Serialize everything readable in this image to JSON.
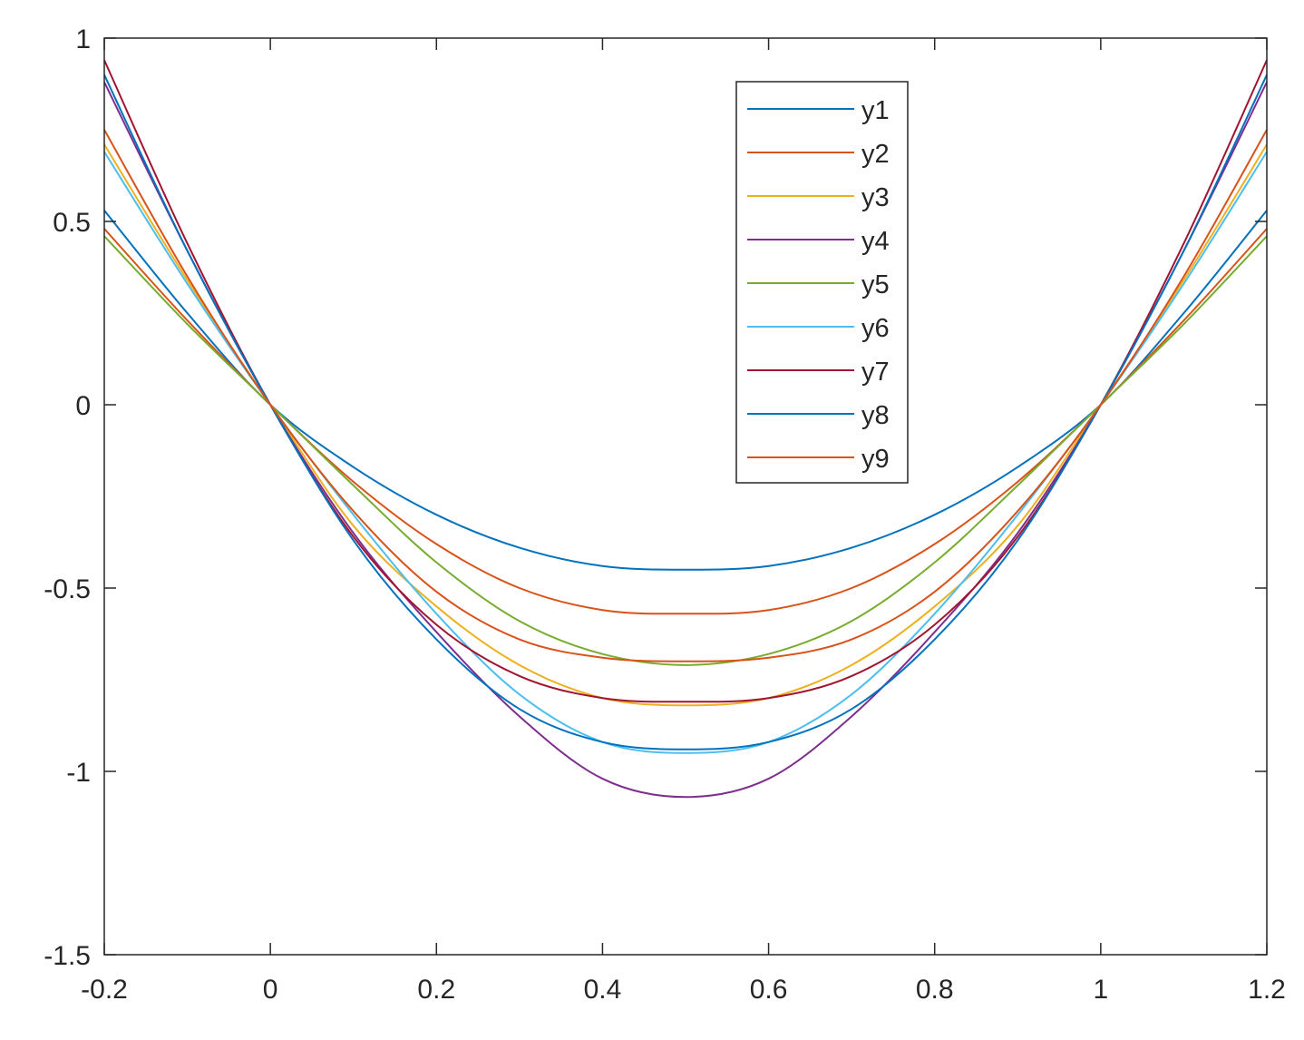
{
  "chart_data": {
    "type": "line",
    "title": "",
    "xlabel": "",
    "ylabel": "",
    "xlim": [
      -0.2,
      1.2
    ],
    "ylim": [
      -1.5,
      1
    ],
    "xticks": [
      -0.2,
      0,
      0.2,
      0.4,
      0.6,
      0.8,
      1,
      1.2
    ],
    "xtick_labels": [
      "-0.2",
      "0",
      "0.2",
      "0.4",
      "0.6",
      "0.8",
      "1",
      "1.2"
    ],
    "yticks": [
      -1.5,
      -1,
      -0.5,
      0,
      0.5,
      1
    ],
    "ytick_labels": [
      "-1.5",
      "-1",
      "-0.5",
      "0",
      "0.5",
      "1"
    ],
    "grid": false,
    "legend_position": "top-right",
    "x": [
      -0.2,
      -0.1,
      0,
      0.1,
      0.2,
      0.3,
      0.4,
      0.5,
      0.6,
      0.7,
      0.8,
      0.9,
      1,
      1.1,
      1.2
    ],
    "series": [
      {
        "name": "y1",
        "color": "#0072BD",
        "values": [
          0.53,
          0.25,
          0,
          -0.17,
          -0.3,
          -0.39,
          -0.44,
          -0.45,
          -0.44,
          -0.39,
          -0.3,
          -0.17,
          0,
          0.25,
          0.53
        ]
      },
      {
        "name": "y2",
        "color": "#D95319",
        "values": [
          0.48,
          0.23,
          0,
          -0.21,
          -0.38,
          -0.5,
          -0.56,
          -0.57,
          -0.56,
          -0.5,
          -0.38,
          -0.21,
          0,
          0.23,
          0.48
        ]
      },
      {
        "name": "y3",
        "color": "#EDB120",
        "values": [
          0.71,
          0.34,
          0,
          -0.33,
          -0.55,
          -0.71,
          -0.8,
          -0.82,
          -0.8,
          -0.71,
          -0.55,
          -0.33,
          0,
          0.34,
          0.71
        ]
      },
      {
        "name": "y4",
        "color": "#7E2F8E",
        "values": [
          0.88,
          0.42,
          0,
          -0.35,
          -0.62,
          -0.85,
          -1.02,
          -1.07,
          -1.02,
          -0.85,
          -0.62,
          -0.35,
          0,
          0.42,
          0.88
        ]
      },
      {
        "name": "y5",
        "color": "#77AC30",
        "values": [
          0.46,
          0.22,
          0,
          -0.22,
          -0.43,
          -0.59,
          -0.68,
          -0.71,
          -0.68,
          -0.59,
          -0.43,
          -0.22,
          0,
          0.22,
          0.46
        ]
      },
      {
        "name": "y6",
        "color": "#4DBEEE",
        "values": [
          0.69,
          0.33,
          0,
          -0.3,
          -0.57,
          -0.79,
          -0.92,
          -0.95,
          -0.92,
          -0.79,
          -0.57,
          -0.3,
          0,
          0.33,
          0.69
        ]
      },
      {
        "name": "y7",
        "color": "#A2142F",
        "values": [
          0.94,
          0.44,
          0,
          -0.36,
          -0.6,
          -0.74,
          -0.8,
          -0.81,
          -0.8,
          -0.74,
          -0.6,
          -0.36,
          0,
          0.44,
          0.94
        ]
      },
      {
        "name": "y8",
        "color": "#0072BD",
        "values": [
          0.9,
          0.42,
          0,
          -0.37,
          -0.64,
          -0.83,
          -0.92,
          -0.94,
          -0.92,
          -0.83,
          -0.64,
          -0.37,
          0,
          0.42,
          0.9
        ]
      },
      {
        "name": "y9",
        "color": "#D95319",
        "values": [
          0.75,
          0.35,
          0,
          -0.29,
          -0.51,
          -0.64,
          -0.69,
          -0.7,
          -0.69,
          -0.64,
          -0.51,
          -0.29,
          0,
          0.35,
          0.75
        ]
      }
    ]
  }
}
